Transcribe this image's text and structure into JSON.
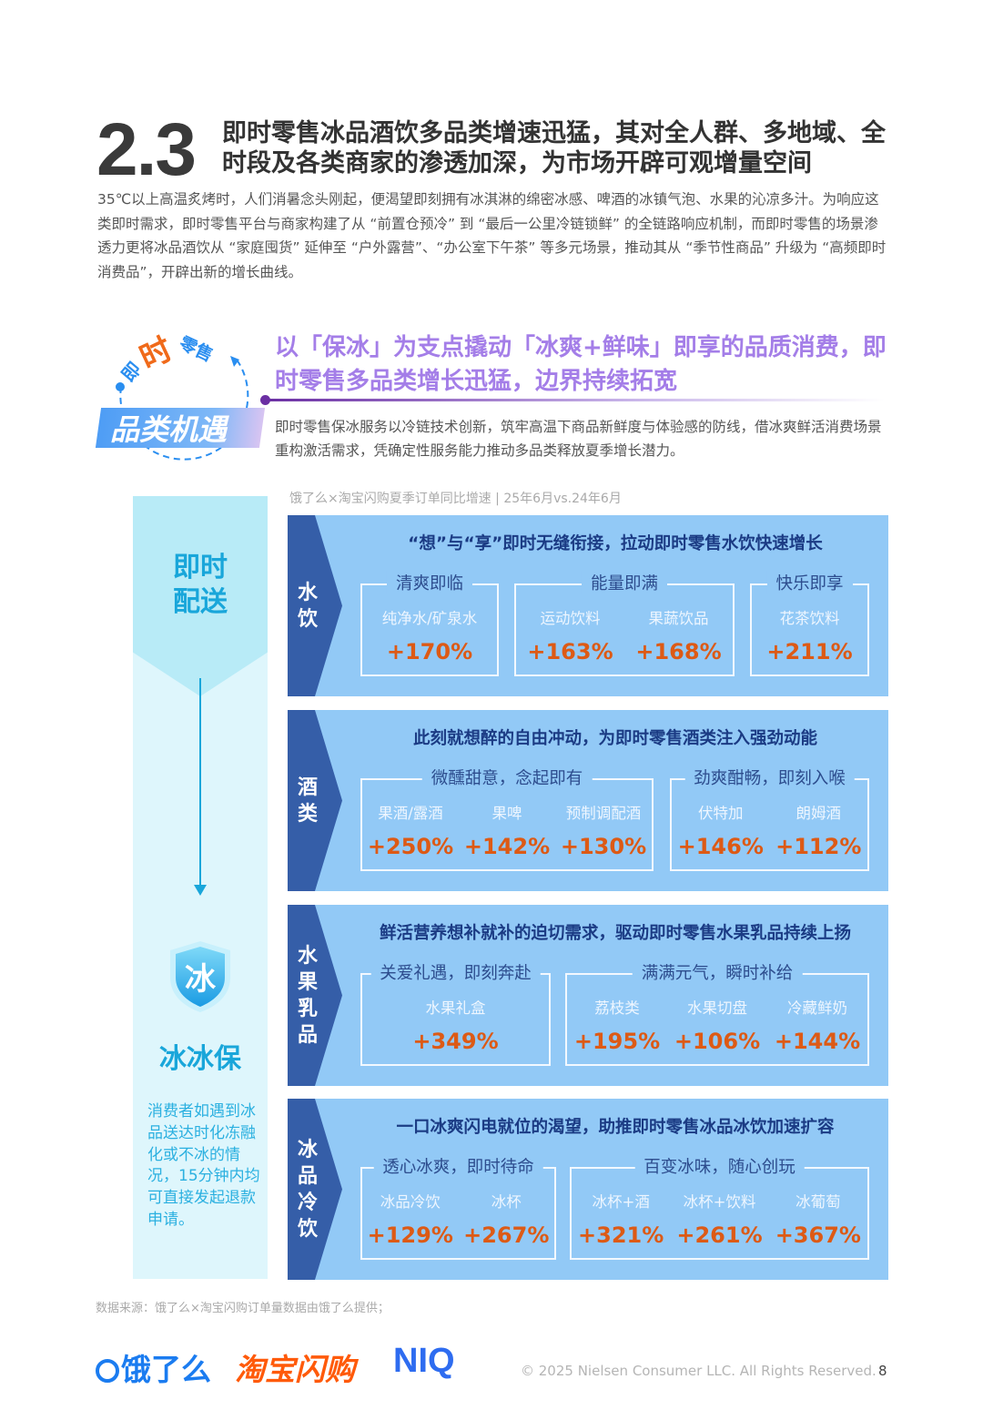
{
  "header": {
    "section_number": "2.3",
    "title": "即时零售冰品酒饮多品类增速迅猛，其对全人群、多地域、全时段及各类商家的渗透加深，为市场开辟可观增量空间",
    "intro": "35℃以上高温炙烤时，人们消暑念头刚起，便渴望即刻拥有冰淇淋的绵密冰感、啤酒的冰镇气泡、水果的沁凉多汁。为响应这类即时需求，即时零售平台与商家构建了从 “前置仓预冷” 到 “最后一公里冷链锁鲜” 的全链路响应机制，而即时零售的场景渗透力更将冰品酒饮从 “家庭囤货” 延伸至 “户外露营”、“办公室下午茶” 等多元场景，推动其从 “季节性商品” 升级为 “高频即时消费品”，开辟出新的增长曲线。"
  },
  "badge": {
    "ring_top_1": "即",
    "ring_top_2": "时",
    "ring_top_3": "零售",
    "label": "品类机遇"
  },
  "highlight": {
    "title": "以「保冰」为支点撬动「冰爽+鲜味」即享的品质消费，即时零售多品类增长迅猛，边界持续拓宽",
    "desc": "即时零售保冰服务以冷链技术创新，筑牢高温下商品新鲜度与体验感的防线，借冰爽鲜活消费场景重构激活需求，凭确定性服务能力推动多品类释放夏季增长潜力。"
  },
  "chart_caption": "饿了么×淘宝闪购夏季订单同比增速 | 25年6月vs.24年6月",
  "left_panel": {
    "delivery": "即时\n配送",
    "service_icon": "冰",
    "service_name": "冰冰保",
    "service_desc": "消费者如遇到冰品送达时化冻融化或不冰的情况，15分钟内均可直接发起退款申请。"
  },
  "colors": {
    "panel": "#92c9f6",
    "tab": "#355ea8",
    "headline": "#1b3b84",
    "value": "#dd5a15",
    "accent_cyan": "#19a6da",
    "purple": "#a47ee8"
  },
  "sections": [
    {
      "label": "水\n饮",
      "headline": "“想”与“享”即时无缝衔接，拉动即时零售水饮快速增长",
      "groups": [
        {
          "title": "清爽即临",
          "items": [
            {
              "name": "纯净水/矿泉水",
              "value": "+170%"
            }
          ]
        },
        {
          "title": "能量即满",
          "items": [
            {
              "name": "运动饮料",
              "value": "+163%"
            },
            {
              "name": "果蔬饮品",
              "value": "+168%"
            }
          ]
        },
        {
          "title": "快乐即享",
          "items": [
            {
              "name": "花茶饮料",
              "value": "+211%"
            }
          ]
        }
      ]
    },
    {
      "label": "酒\n类",
      "headline": "此刻就想醉的自由冲动，为即时零售酒类注入强劲动能",
      "groups": [
        {
          "title": "微醺甜意，念起即有",
          "items": [
            {
              "name": "果酒/露酒",
              "value": "+250%"
            },
            {
              "name": "果啤",
              "value": "+142%"
            },
            {
              "name": "预制调配酒",
              "value": "+130%"
            }
          ]
        },
        {
          "title": "劲爽酣畅，即刻入喉",
          "items": [
            {
              "name": "伏特加",
              "value": "+146%"
            },
            {
              "name": "朗姆酒",
              "value": "+112%"
            }
          ]
        }
      ]
    },
    {
      "label": "水\n果\n乳\n品",
      "headline": "鲜活营养想补就补的迫切需求，驱动即时零售水果乳品持续上扬",
      "groups": [
        {
          "title": "关爱礼遇，即刻奔赴",
          "items": [
            {
              "name": "水果礼盒",
              "value": "+349%"
            }
          ]
        },
        {
          "title": "满满元气，瞬时补给",
          "items": [
            {
              "name": "荔枝类",
              "value": "+195%"
            },
            {
              "name": "水果切盘",
              "value": "+106%"
            },
            {
              "name": "冷藏鲜奶",
              "value": "+144%"
            }
          ]
        }
      ]
    },
    {
      "label": "冰\n品\n冷\n饮",
      "headline": "一口冰爽闪电就位的渴望，助推即时零售冰品冰饮加速扩容",
      "groups": [
        {
          "title": "透心冰爽，即时待命",
          "items": [
            {
              "name": "冰品冷饮",
              "value": "+129%"
            },
            {
              "name": "冰杯",
              "value": "+267%"
            }
          ]
        },
        {
          "title": "百变冰味，随心创玩",
          "items": [
            {
              "name": "冰杯+酒",
              "value": "+321%"
            },
            {
              "name": "冰杯+饮料",
              "value": "+261%"
            },
            {
              "name": "冰葡萄",
              "value": "+367%"
            }
          ]
        }
      ]
    }
  ],
  "footer": {
    "source": "数据来源：饿了么×淘宝闪购订单量数据由饿了么提供；",
    "logo_eleme": "饿了么",
    "logo_taobao": "淘宝闪购",
    "logo_niq": "NIQ",
    "copyright": "© 2025 Nielsen Consumer LLC. All Rights Reserved.",
    "page": "8"
  }
}
